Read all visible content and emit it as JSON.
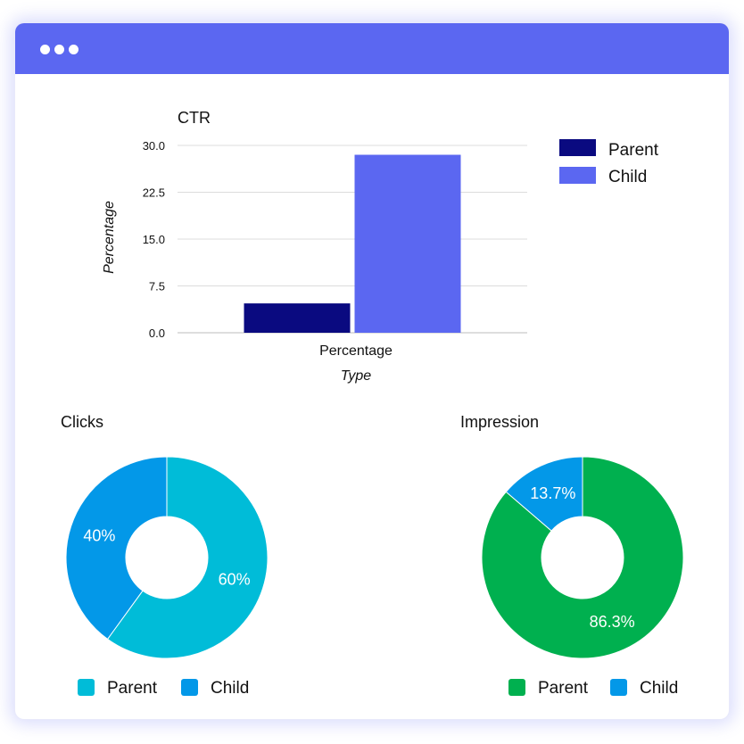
{
  "window": {
    "titlebar_color": "#5b67f1"
  },
  "chart_data": [
    {
      "type": "bar",
      "title": "CTR",
      "xlabel": "Type",
      "ylabel": "Percentage",
      "categories": [
        "Percentage"
      ],
      "series": [
        {
          "name": "Parent",
          "color": "#0a0a80",
          "values": [
            4.7
          ]
        },
        {
          "name": "Child",
          "color": "#5b67f1",
          "values": [
            28.5
          ]
        }
      ],
      "ylim": [
        0,
        30
      ],
      "yticks": [
        "0.0",
        "7.5",
        "15.0",
        "22.5",
        "30.0"
      ],
      "grid": true,
      "legend": "top-right"
    },
    {
      "type": "pie",
      "title": "Clicks",
      "donut": true,
      "slices": [
        {
          "name": "Parent",
          "value": 60,
          "label": "60%",
          "color": "#00bcd8"
        },
        {
          "name": "Child",
          "value": 40,
          "label": "40%",
          "color": "#0398e8"
        }
      ],
      "legend": "bottom"
    },
    {
      "type": "pie",
      "title": "Impression",
      "donut": true,
      "slices": [
        {
          "name": "Parent",
          "value": 86.3,
          "label": "86.3%",
          "color": "#00b04f"
        },
        {
          "name": "Child",
          "value": 13.7,
          "label": "13.7%",
          "color": "#0398e8"
        }
      ],
      "legend": "bottom"
    }
  ]
}
